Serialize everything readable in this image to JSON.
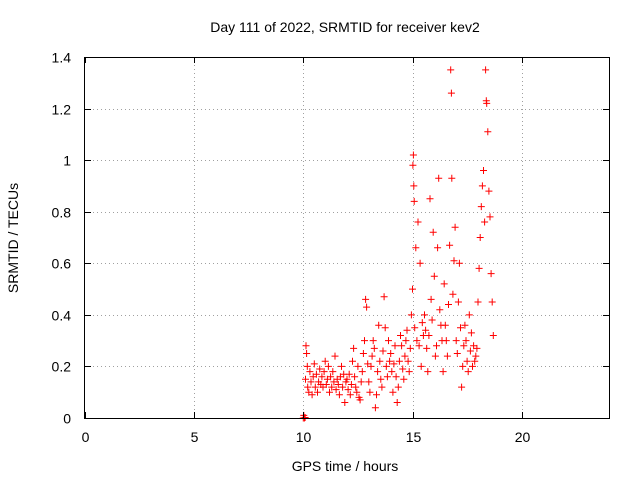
{
  "chart_data": {
    "type": "scatter",
    "title": "Day 111 of 2022, SRMTID for receiver kev2",
    "xlabel": "GPS time / hours",
    "ylabel": "SRMTID / TECUs",
    "xlim": [
      0,
      24
    ],
    "ylim": [
      0,
      1.4
    ],
    "x_ticks": [
      0,
      5,
      10,
      15,
      20
    ],
    "x_tick_labels": [
      "0",
      "5",
      "10",
      "15",
      "20"
    ],
    "y_ticks": [
      0,
      0.2,
      0.4,
      0.6,
      0.8,
      1,
      1.2,
      1.4
    ],
    "y_tick_labels": [
      "0",
      "0.2",
      "0.4",
      "0.6",
      "0.8",
      "1",
      "1.2",
      "1.4"
    ],
    "grid": true,
    "marker": "+",
    "color": "#ff0000",
    "series": [
      {
        "name": "SRMTID",
        "points": [
          [
            10.0,
            0.0
          ],
          [
            10.02,
            0.01
          ],
          [
            10.05,
            0.0
          ],
          [
            10.08,
            0.002
          ],
          [
            10.1,
            0.15
          ],
          [
            10.12,
            0.28
          ],
          [
            10.15,
            0.25
          ],
          [
            10.18,
            0.2
          ],
          [
            10.2,
            0.12
          ],
          [
            10.25,
            0.1
          ],
          [
            10.3,
            0.18
          ],
          [
            10.35,
            0.14
          ],
          [
            10.4,
            0.09
          ],
          [
            10.45,
            0.16
          ],
          [
            10.5,
            0.21
          ],
          [
            10.55,
            0.12
          ],
          [
            10.6,
            0.17
          ],
          [
            10.65,
            0.1
          ],
          [
            10.7,
            0.14
          ],
          [
            10.75,
            0.19
          ],
          [
            10.8,
            0.13
          ],
          [
            10.85,
            0.16
          ],
          [
            10.9,
            0.12
          ],
          [
            10.95,
            0.18
          ],
          [
            11.0,
            0.22
          ],
          [
            11.05,
            0.13
          ],
          [
            11.1,
            0.15
          ],
          [
            11.15,
            0.2
          ],
          [
            11.2,
            0.1
          ],
          [
            11.25,
            0.16
          ],
          [
            11.3,
            0.12
          ],
          [
            11.35,
            0.18
          ],
          [
            11.4,
            0.14
          ],
          [
            11.45,
            0.24
          ],
          [
            11.5,
            0.11
          ],
          [
            11.55,
            0.15
          ],
          [
            11.6,
            0.13
          ],
          [
            11.65,
            0.09
          ],
          [
            11.7,
            0.16
          ],
          [
            11.75,
            0.2
          ],
          [
            11.8,
            0.12
          ],
          [
            11.85,
            0.17
          ],
          [
            11.9,
            0.06
          ],
          [
            11.95,
            0.14
          ],
          [
            12.0,
            0.15
          ],
          [
            12.05,
            0.11
          ],
          [
            12.1,
            0.17
          ],
          [
            12.15,
            0.09
          ],
          [
            12.2,
            0.13
          ],
          [
            12.25,
            0.22
          ],
          [
            12.3,
            0.27
          ],
          [
            12.35,
            0.16
          ],
          [
            12.4,
            0.12
          ],
          [
            12.45,
            0.1
          ],
          [
            12.5,
            0.2
          ],
          [
            12.55,
            0.08
          ],
          [
            12.6,
            0.07
          ],
          [
            12.65,
            0.14
          ],
          [
            12.7,
            0.18
          ],
          [
            12.75,
            0.25
          ],
          [
            12.8,
            0.3
          ],
          [
            12.85,
            0.46
          ],
          [
            12.9,
            0.43
          ],
          [
            12.95,
            0.21
          ],
          [
            13.0,
            0.14
          ],
          [
            13.05,
            0.1
          ],
          [
            13.1,
            0.2
          ],
          [
            13.15,
            0.24
          ],
          [
            13.2,
            0.3
          ],
          [
            13.25,
            0.27
          ],
          [
            13.3,
            0.04
          ],
          [
            13.35,
            0.09
          ],
          [
            13.4,
            0.18
          ],
          [
            13.45,
            0.36
          ],
          [
            13.5,
            0.22
          ],
          [
            13.55,
            0.15
          ],
          [
            13.6,
            0.12
          ],
          [
            13.65,
            0.26
          ],
          [
            13.7,
            0.47
          ],
          [
            13.75,
            0.35
          ],
          [
            13.8,
            0.2
          ],
          [
            13.85,
            0.16
          ],
          [
            13.9,
            0.3
          ],
          [
            13.95,
            0.22
          ],
          [
            14.0,
            0.25
          ],
          [
            14.05,
            0.18
          ],
          [
            14.1,
            0.1
          ],
          [
            14.15,
            0.21
          ],
          [
            14.2,
            0.28
          ],
          [
            14.25,
            0.16
          ],
          [
            14.3,
            0.06
          ],
          [
            14.35,
            0.12
          ],
          [
            14.4,
            0.22
          ],
          [
            14.45,
            0.32
          ],
          [
            14.5,
            0.28
          ],
          [
            14.55,
            0.19
          ],
          [
            14.6,
            0.15
          ],
          [
            14.65,
            0.24
          ],
          [
            14.7,
            0.3
          ],
          [
            14.75,
            0.34
          ],
          [
            14.8,
            0.22
          ],
          [
            14.85,
            0.18
          ],
          [
            14.9,
            0.27
          ],
          [
            14.95,
            0.4
          ],
          [
            15.0,
            0.5
          ],
          [
            15.02,
            0.98
          ],
          [
            15.04,
            1.02
          ],
          [
            15.06,
            0.9
          ],
          [
            15.08,
            0.84
          ],
          [
            15.1,
            0.35
          ],
          [
            15.15,
            0.66
          ],
          [
            15.2,
            0.3
          ],
          [
            15.25,
            0.76
          ],
          [
            15.3,
            0.28
          ],
          [
            15.35,
            0.6
          ],
          [
            15.4,
            0.2
          ],
          [
            15.45,
            0.37
          ],
          [
            15.5,
            0.32
          ],
          [
            15.55,
            0.4
          ],
          [
            15.6,
            0.34
          ],
          [
            15.65,
            0.27
          ],
          [
            15.7,
            0.18
          ],
          [
            15.75,
            0.32
          ],
          [
            15.8,
            0.85
          ],
          [
            15.85,
            0.46
          ],
          [
            15.9,
            0.38
          ],
          [
            15.95,
            0.72
          ],
          [
            16.0,
            0.55
          ],
          [
            16.05,
            0.24
          ],
          [
            16.1,
            0.28
          ],
          [
            16.15,
            0.66
          ],
          [
            16.2,
            0.93
          ],
          [
            16.25,
            0.42
          ],
          [
            16.3,
            0.36
          ],
          [
            16.35,
            0.3
          ],
          [
            16.4,
            0.18
          ],
          [
            16.45,
            0.52
          ],
          [
            16.5,
            0.36
          ],
          [
            16.55,
            0.3
          ],
          [
            16.6,
            0.24
          ],
          [
            16.65,
            0.44
          ],
          [
            16.7,
            0.67
          ],
          [
            16.75,
            1.35
          ],
          [
            16.78,
            1.26
          ],
          [
            16.8,
            0.93
          ],
          [
            16.85,
            0.48
          ],
          [
            16.9,
            0.61
          ],
          [
            16.95,
            0.74
          ],
          [
            17.0,
            0.3
          ],
          [
            17.05,
            0.25
          ],
          [
            17.1,
            0.45
          ],
          [
            17.15,
            0.6
          ],
          [
            17.2,
            0.35
          ],
          [
            17.25,
            0.12
          ],
          [
            17.3,
            0.2
          ],
          [
            17.35,
            0.28
          ],
          [
            17.4,
            0.36
          ],
          [
            17.45,
            0.3
          ],
          [
            17.5,
            0.22
          ],
          [
            17.55,
            0.18
          ],
          [
            17.6,
            0.4
          ],
          [
            17.65,
            0.26
          ],
          [
            17.7,
            0.33
          ],
          [
            17.75,
            0.2
          ],
          [
            17.8,
            0.28
          ],
          [
            17.85,
            0.22
          ],
          [
            17.9,
            0.24
          ],
          [
            17.95,
            0.27
          ],
          [
            18.0,
            0.45
          ],
          [
            18.05,
            0.58
          ],
          [
            18.1,
            0.7
          ],
          [
            18.15,
            0.82
          ],
          [
            18.2,
            0.9
          ],
          [
            18.25,
            0.96
          ],
          [
            18.3,
            0.76
          ],
          [
            18.35,
            1.35
          ],
          [
            18.38,
            1.23
          ],
          [
            18.4,
            1.22
          ],
          [
            18.45,
            1.11
          ],
          [
            18.5,
            0.88
          ],
          [
            18.55,
            0.78
          ],
          [
            18.6,
            0.56
          ],
          [
            18.65,
            0.45
          ],
          [
            18.7,
            0.32
          ]
        ]
      }
    ]
  }
}
